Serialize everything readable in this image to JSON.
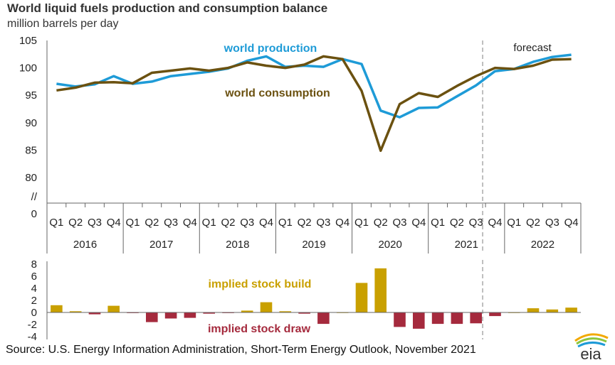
{
  "title": "World liquid fuels production and consumption balance",
  "subtitle": "million barrels per day",
  "source": "Source: U.S. Energy Information Administration, Short-Term Energy Outlook, November 2021",
  "logo_text": "eia",
  "colors": {
    "production": "#1e9bd7",
    "consumption": "#6b5110",
    "build": "#c9a000",
    "draw": "#a52a3d",
    "axis": "#666666",
    "forecast_line": "#aaaaaa"
  },
  "chart_data": [
    {
      "type": "line",
      "quarters": [
        "Q1",
        "Q2",
        "Q3",
        "Q4",
        "Q1",
        "Q2",
        "Q3",
        "Q4",
        "Q1",
        "Q2",
        "Q3",
        "Q4",
        "Q1",
        "Q2",
        "Q3",
        "Q4",
        "Q1",
        "Q2",
        "Q3",
        "Q4",
        "Q1",
        "Q2",
        "Q3",
        "Q4",
        "Q1",
        "Q2",
        "Q3",
        "Q4"
      ],
      "years": [
        "2016",
        "2017",
        "2018",
        "2019",
        "2020",
        "2021",
        "2022"
      ],
      "y_ticks": [
        "105",
        "100",
        "95",
        "90",
        "85",
        "80",
        "//",
        "0"
      ],
      "ylim": [
        80,
        105
      ],
      "axis_break": true,
      "forecast_label": "forecast",
      "forecast_start_index": 23,
      "series": [
        {
          "name": "world production",
          "values": [
            97.1,
            96.6,
            97.0,
            98.5,
            97.1,
            97.5,
            98.5,
            98.9,
            99.3,
            99.9,
            101.3,
            102.1,
            100.2,
            100.4,
            100.2,
            101.6,
            100.7,
            92.2,
            91.0,
            92.7,
            92.8,
            94.8,
            96.8,
            99.4,
            99.8,
            101.1,
            102.0,
            102.4
          ]
        },
        {
          "name": "world consumption",
          "values": [
            95.9,
            96.4,
            97.3,
            97.4,
            97.2,
            99.1,
            99.5,
            99.9,
            99.5,
            100.0,
            101.0,
            100.4,
            100.0,
            100.6,
            102.1,
            101.6,
            95.8,
            84.9,
            93.4,
            95.4,
            94.7,
            96.7,
            98.5,
            100.0,
            99.8,
            100.4,
            101.5,
            101.6
          ]
        }
      ]
    },
    {
      "type": "bar",
      "y_ticks": [
        "8",
        "6",
        "4",
        "2",
        "0",
        "-2",
        "-4"
      ],
      "ylim": [
        -4,
        8
      ],
      "build_label": "implied stock  build",
      "draw_label": "implied stock draw",
      "values": [
        1.2,
        0.2,
        -0.3,
        1.1,
        -0.1,
        -1.6,
        -1.0,
        -0.9,
        -0.2,
        -0.1,
        0.3,
        1.7,
        0.2,
        -0.2,
        -1.9,
        0.0,
        4.9,
        7.3,
        -2.4,
        -2.7,
        -1.9,
        -1.9,
        -1.8,
        -0.6,
        0.0,
        0.7,
        0.5,
        0.8
      ]
    }
  ]
}
